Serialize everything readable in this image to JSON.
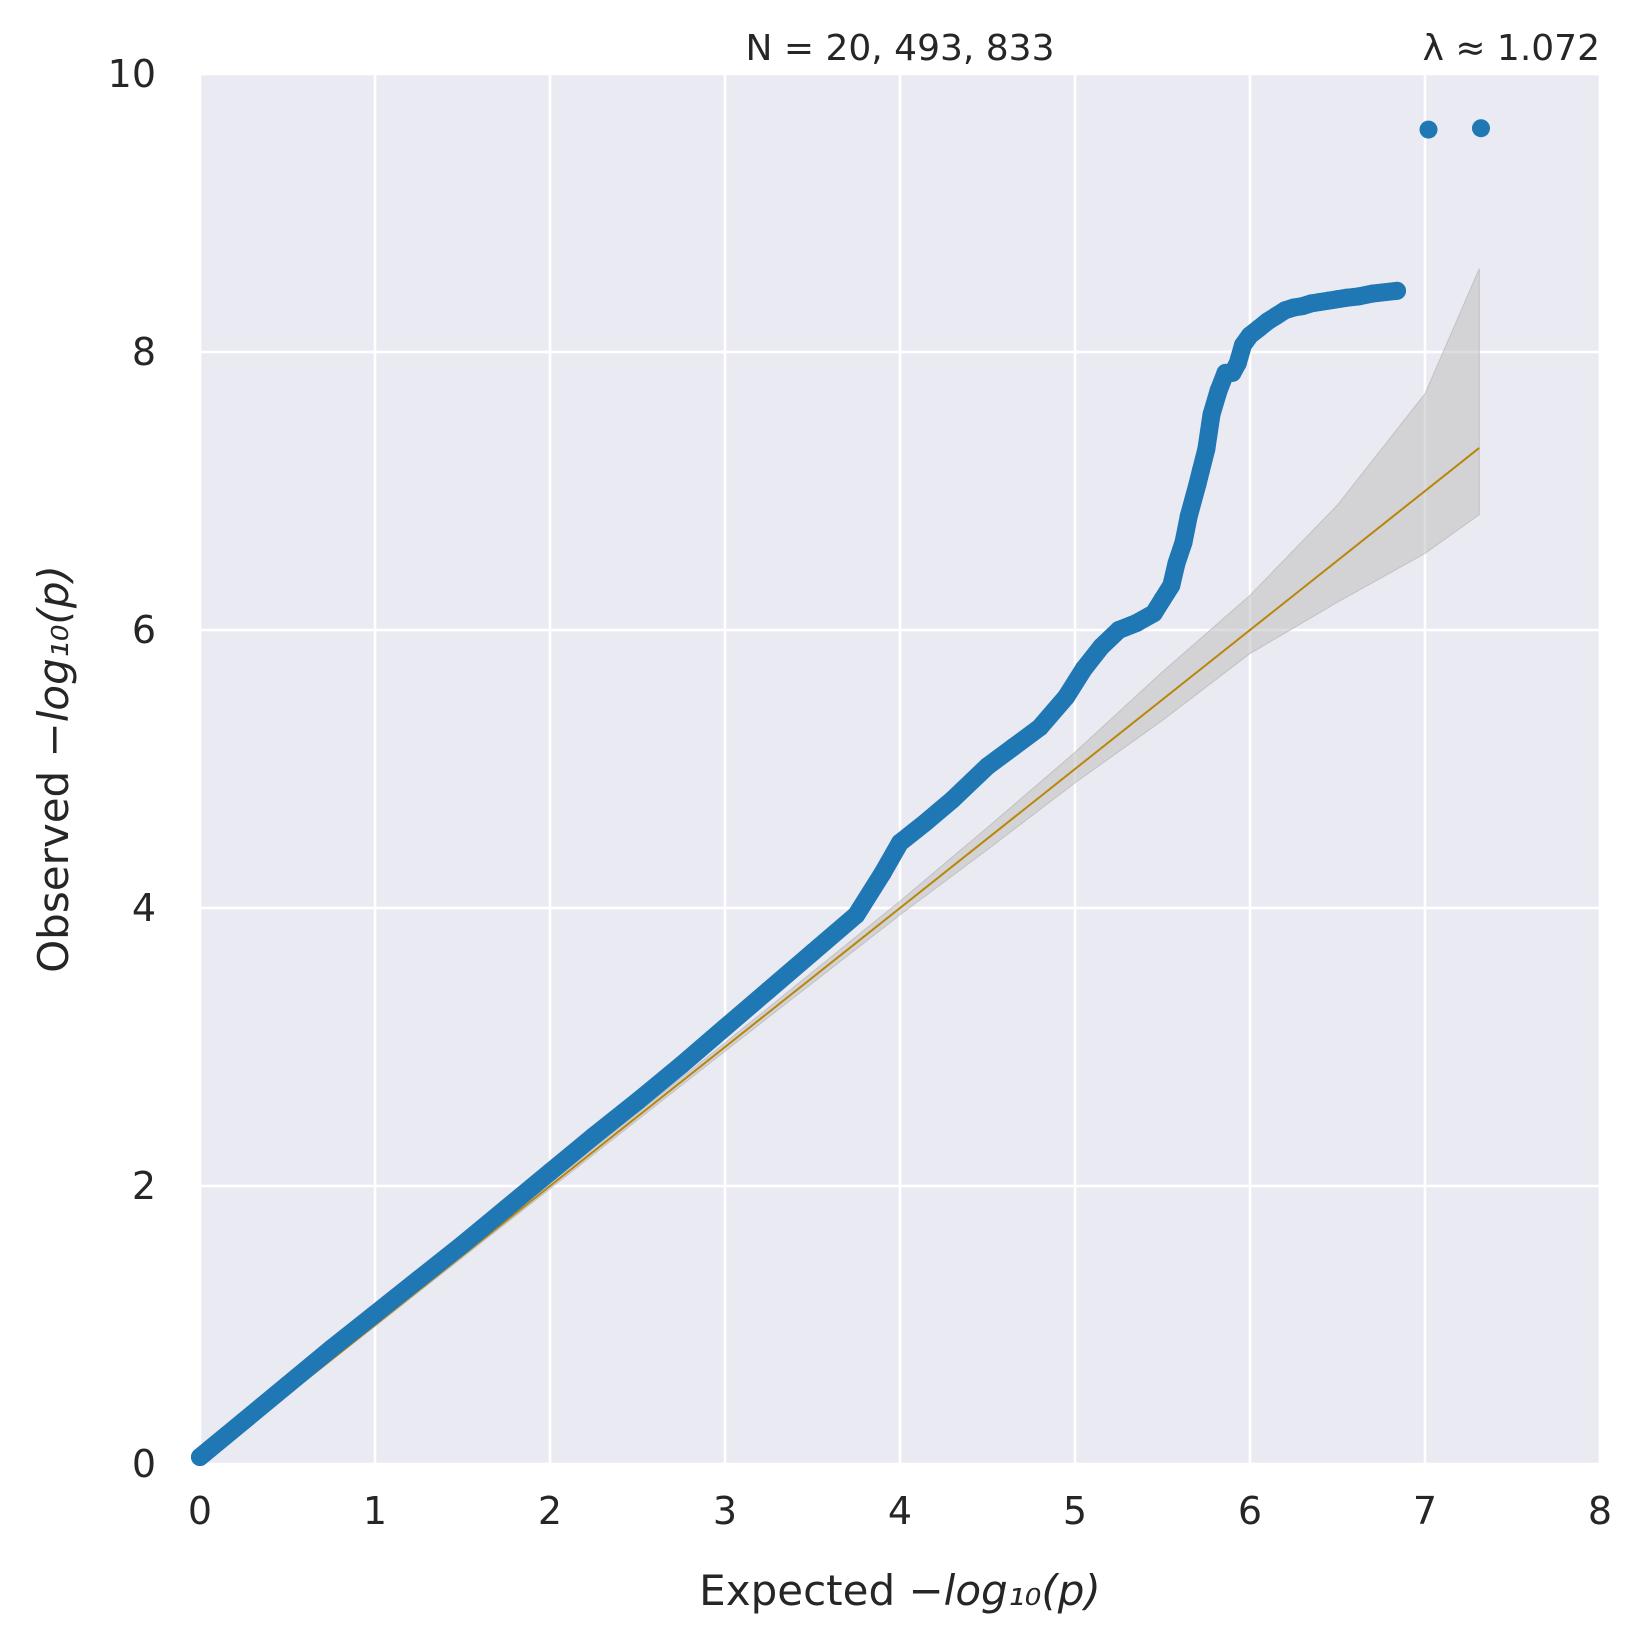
{
  "chart_data": {
    "type": "scatter",
    "title": "",
    "annotations": {
      "n_label": "N = 20, 493, 833",
      "lambda_label": "λ ≈ 1.072"
    },
    "xlabel": {
      "prefix": "Expected ",
      "math": "−log₁₀(p)"
    },
    "ylabel": {
      "prefix": "Observed ",
      "math": "−log₁₀(p)"
    },
    "xlim": [
      0,
      8
    ],
    "ylim": [
      0,
      10
    ],
    "xticks": [
      "0",
      "1",
      "2",
      "3",
      "4",
      "5",
      "6",
      "7",
      "8"
    ],
    "yticks": [
      "0",
      "2",
      "4",
      "6",
      "8",
      "10"
    ],
    "grid": true,
    "colors": {
      "background": "#eaeaf2",
      "grid": "#ffffff",
      "points": "#1f77b4",
      "reference_line": "#b8860b",
      "confidence_band": "#bfbfbf"
    },
    "reference_line": {
      "x": [
        0,
        7.31
      ],
      "y": [
        0,
        7.31
      ]
    },
    "confidence_band": {
      "x": [
        0,
        1,
        2,
        3,
        4,
        4.5,
        5,
        5.5,
        6,
        6.5,
        7,
        7.31
      ],
      "lower": [
        0,
        0.99,
        1.98,
        2.97,
        3.95,
        4.42,
        4.9,
        5.35,
        5.83,
        6.2,
        6.55,
        6.83
      ],
      "upper": [
        0,
        1.01,
        2.02,
        3.03,
        4.05,
        4.58,
        5.12,
        5.7,
        6.25,
        6.9,
        7.7,
        8.6
      ]
    },
    "series": [
      {
        "name": "",
        "x": [
          0,
          0.25,
          0.5,
          0.75,
          1.0,
          1.25,
          1.5,
          1.75,
          2.0,
          2.25,
          2.5,
          2.75,
          3.0,
          3.25,
          3.5,
          3.75,
          3.9,
          4.0,
          4.15,
          4.3,
          4.5,
          4.65,
          4.8,
          4.95,
          5.05,
          5.15,
          5.25,
          5.35,
          5.45,
          5.5,
          5.55,
          5.58,
          5.62,
          5.65,
          5.7,
          5.72,
          5.75,
          5.78,
          5.82,
          5.86,
          5.9,
          5.93,
          5.96,
          6.0,
          6.05,
          6.1,
          6.15,
          6.2,
          6.25,
          6.3,
          6.35,
          6.4,
          6.45,
          6.5,
          6.55,
          6.62,
          6.7,
          6.84,
          7.02,
          7.32
        ],
        "y": [
          0.05,
          0.31,
          0.57,
          0.83,
          1.08,
          1.33,
          1.58,
          1.84,
          2.1,
          2.36,
          2.61,
          2.87,
          3.14,
          3.41,
          3.68,
          3.95,
          4.25,
          4.47,
          4.62,
          4.78,
          5.02,
          5.16,
          5.3,
          5.52,
          5.72,
          5.88,
          6.0,
          6.05,
          6.12,
          6.22,
          6.32,
          6.48,
          6.63,
          6.82,
          7.05,
          7.15,
          7.3,
          7.55,
          7.72,
          7.85,
          7.85,
          7.92,
          8.05,
          8.12,
          8.17,
          8.22,
          8.26,
          8.3,
          8.32,
          8.33,
          8.35,
          8.36,
          8.37,
          8.38,
          8.39,
          8.4,
          8.42,
          8.44,
          9.6,
          9.61
        ]
      }
    ]
  }
}
